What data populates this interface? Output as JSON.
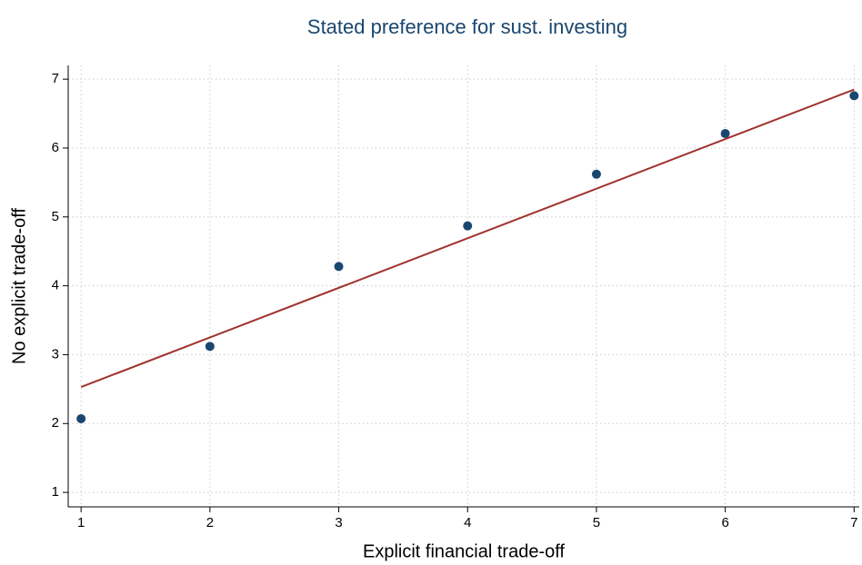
{
  "chart_data": {
    "type": "scatter",
    "title": "Stated preference for sust. investing",
    "x_label": "Explicit financial trade-off",
    "y_label": "No explicit trade-off",
    "xlim": [
      0.9,
      7.04
    ],
    "ylim": [
      0.79,
      7.2
    ],
    "xticks": [
      1,
      2,
      3,
      4,
      5,
      6,
      7
    ],
    "yticks": [
      1,
      2,
      3,
      4,
      5,
      6,
      7
    ],
    "grid": true,
    "series": [
      {
        "mode": "markers",
        "color": "#1a476f",
        "x": [
          1,
          2,
          3,
          4,
          5,
          6,
          7
        ],
        "values": [
          2.07,
          3.12,
          4.28,
          4.87,
          5.62,
          6.21,
          6.76
        ]
      },
      {
        "mode": "line",
        "color": "#a0322d",
        "x": [
          1,
          7
        ],
        "values": [
          2.53,
          6.85
        ]
      }
    ]
  }
}
